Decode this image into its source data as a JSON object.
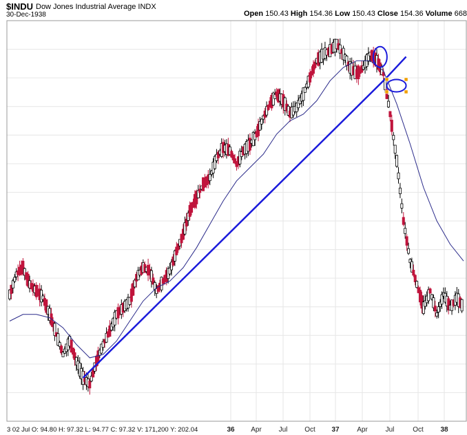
{
  "header": {
    "symbol": "$INDU",
    "name": "Dow Jones Industrial Average",
    "exchange": "INDX",
    "date": "30-Dec-1938",
    "open_label": "Open",
    "open": "150.43",
    "high_label": "High",
    "high": "154.36",
    "low_label": "Low",
    "low": "150.43",
    "close_label": "Close",
    "close": "154.36",
    "volume_label": "Volume",
    "volume": "668"
  },
  "readout": "3 02 Jul O: 94.80  H: 97.32  L: 94.77  C: 97.32  V: 171,200  Y: 202.04",
  "colors": {
    "up": "#000000",
    "down": "#c0143c",
    "ma": "#2a2a8a",
    "trendline": "#1a1adb",
    "grid": "#e6e6e6",
    "handle": "#f0a000"
  },
  "chart_data": {
    "type": "candlestick",
    "x_ticks": [
      "36",
      "Apr",
      "Jul",
      "Oct",
      "37",
      "Apr",
      "Jul",
      "Oct",
      "38"
    ],
    "ylim": [
      80,
      200
    ],
    "series": [
      {
        "name": "price",
        "values": [
          [
            0,
            118
          ],
          [
            2,
            124
          ],
          [
            4,
            126
          ],
          [
            6,
            121
          ],
          [
            8,
            119
          ],
          [
            10,
            117
          ],
          [
            12,
            112
          ],
          [
            14,
            106
          ],
          [
            16,
            100
          ],
          [
            18,
            104
          ],
          [
            20,
            98
          ],
          [
            22,
            93
          ],
          [
            24,
            91
          ],
          [
            26,
            98
          ],
          [
            28,
            103
          ],
          [
            30,
            107
          ],
          [
            32,
            112
          ],
          [
            34,
            114
          ],
          [
            36,
            116
          ],
          [
            38,
            123
          ],
          [
            40,
            126
          ],
          [
            42,
            125
          ],
          [
            44,
            119
          ],
          [
            46,
            122
          ],
          [
            48,
            125
          ],
          [
            50,
            131
          ],
          [
            52,
            136
          ],
          [
            54,
            143
          ],
          [
            56,
            147
          ],
          [
            58,
            151
          ],
          [
            60,
            153
          ],
          [
            62,
            159
          ],
          [
            64,
            162
          ],
          [
            66,
            161
          ],
          [
            68,
            157
          ],
          [
            70,
            161
          ],
          [
            72,
            163
          ],
          [
            74,
            166
          ],
          [
            76,
            171
          ],
          [
            78,
            175
          ],
          [
            80,
            178
          ],
          [
            82,
            176
          ],
          [
            84,
            172
          ],
          [
            86,
            174
          ],
          [
            88,
            178
          ],
          [
            90,
            183
          ],
          [
            92,
            188
          ],
          [
            94,
            190
          ],
          [
            96,
            191
          ],
          [
            98,
            193
          ],
          [
            100,
            190
          ],
          [
            102,
            186
          ],
          [
            104,
            184
          ],
          [
            106,
            186
          ],
          [
            108,
            190
          ],
          [
            110,
            188
          ],
          [
            112,
            184
          ],
          [
            114,
            172
          ],
          [
            116,
            158
          ],
          [
            118,
            140
          ],
          [
            120,
            128
          ],
          [
            122,
            121
          ],
          [
            124,
            114
          ],
          [
            126,
            119
          ],
          [
            128,
            112
          ],
          [
            130,
            118
          ],
          [
            132,
            114
          ],
          [
            134,
            117
          ],
          [
            136,
            114
          ]
        ]
      },
      {
        "name": "moving average",
        "values": [
          [
            0,
            110
          ],
          [
            4,
            112
          ],
          [
            8,
            112
          ],
          [
            12,
            111
          ],
          [
            16,
            108
          ],
          [
            20,
            103
          ],
          [
            24,
            99
          ],
          [
            28,
            100
          ],
          [
            32,
            104
          ],
          [
            36,
            110
          ],
          [
            40,
            116
          ],
          [
            44,
            120
          ],
          [
            48,
            122
          ],
          [
            52,
            126
          ],
          [
            56,
            132
          ],
          [
            60,
            139
          ],
          [
            64,
            146
          ],
          [
            68,
            152
          ],
          [
            72,
            156
          ],
          [
            76,
            160
          ],
          [
            80,
            166
          ],
          [
            84,
            170
          ],
          [
            88,
            172
          ],
          [
            92,
            176
          ],
          [
            96,
            182
          ],
          [
            100,
            186
          ],
          [
            104,
            188
          ],
          [
            108,
            188
          ],
          [
            112,
            185
          ],
          [
            116,
            175
          ],
          [
            120,
            163
          ],
          [
            124,
            150
          ],
          [
            128,
            140
          ],
          [
            132,
            133
          ],
          [
            136,
            128
          ]
        ]
      }
    ],
    "trendlines": [
      {
        "from": [
          22,
          93
        ],
        "to": [
          113,
          183
        ]
      }
    ],
    "annotations": [
      {
        "type": "circle",
        "at": [
          111,
          185
        ]
      },
      {
        "type": "ellipse",
        "at": [
          113,
          183
        ]
      }
    ]
  }
}
